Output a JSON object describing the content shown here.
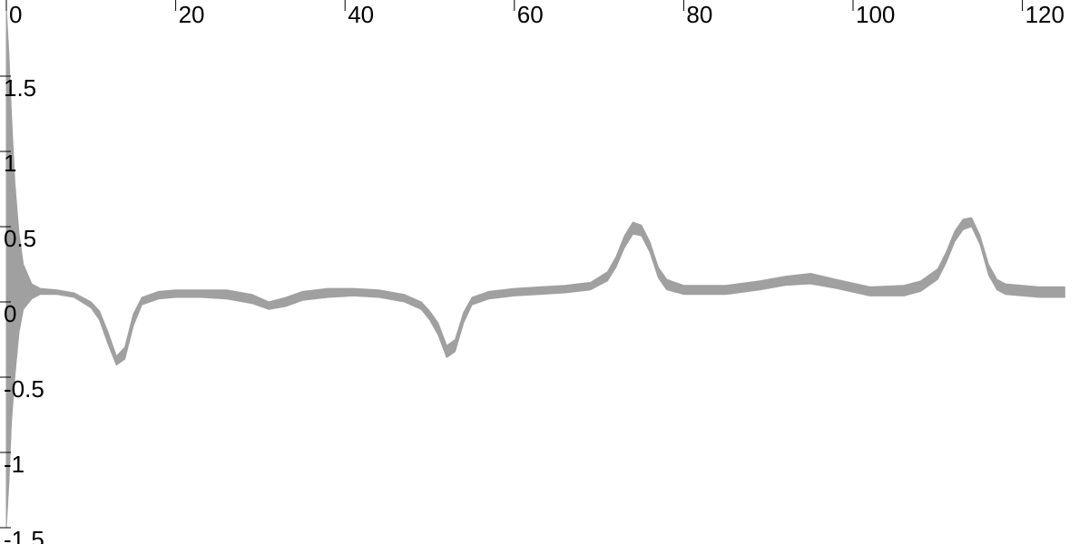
{
  "chart_data": {
    "type": "area",
    "title": "",
    "xlabel": "",
    "ylabel": "",
    "xlim": [
      0,
      125
    ],
    "ylim": [
      -1.5,
      2.0
    ],
    "grid": false,
    "legend": "none",
    "x_ticks": [
      0,
      20,
      40,
      60,
      80,
      100,
      120
    ],
    "x_tick_labels": [
      "0",
      "20",
      "40",
      "60",
      "80",
      "100",
      "120"
    ],
    "y_ticks": [
      1.5,
      1,
      0.5,
      0,
      -0.5,
      -1,
      -1.5
    ],
    "y_tick_labels": [
      "1.5",
      "1",
      "0.5",
      "0",
      "-0.5",
      "-1",
      "-1.5"
    ],
    "series": [
      {
        "color": "#a0a0a0",
        "x": [
          0,
          0.3,
          0.6,
          1,
          1.5,
          2,
          3,
          4,
          6,
          8,
          10,
          11,
          12,
          13,
          14,
          15,
          16,
          18,
          20,
          23,
          26,
          29,
          31,
          33,
          35,
          38,
          41,
          44,
          47,
          49,
          50,
          51,
          52,
          53,
          54,
          55,
          57,
          60,
          63,
          66,
          69,
          71,
          72,
          73,
          74,
          75,
          76,
          77,
          78,
          80,
          85,
          89,
          92,
          95,
          98,
          102,
          106,
          108,
          110,
          111,
          112,
          113,
          114,
          115,
          116,
          117,
          118,
          120,
          122,
          125
        ],
        "upper": [
          1.95,
          1.65,
          1.25,
          0.8,
          0.45,
          0.25,
          0.12,
          0.09,
          0.08,
          0.06,
          0.0,
          -0.06,
          -0.2,
          -0.36,
          -0.3,
          -0.08,
          0.03,
          0.07,
          0.08,
          0.08,
          0.08,
          0.05,
          0.0,
          0.03,
          0.07,
          0.09,
          0.09,
          0.08,
          0.05,
          0.0,
          -0.06,
          -0.14,
          -0.29,
          -0.25,
          -0.07,
          0.03,
          0.07,
          0.09,
          0.1,
          0.11,
          0.13,
          0.2,
          0.3,
          0.44,
          0.53,
          0.51,
          0.4,
          0.23,
          0.15,
          0.11,
          0.11,
          0.14,
          0.17,
          0.19,
          0.15,
          0.1,
          0.11,
          0.14,
          0.22,
          0.33,
          0.47,
          0.55,
          0.56,
          0.44,
          0.25,
          0.15,
          0.12,
          0.11,
          0.1,
          0.1
        ],
        "lower": [
          -1.5,
          -1.2,
          -0.8,
          -0.5,
          -0.2,
          -0.05,
          0.02,
          0.05,
          0.05,
          0.03,
          -0.04,
          -0.12,
          -0.28,
          -0.42,
          -0.38,
          -0.16,
          -0.02,
          0.02,
          0.03,
          0.03,
          0.02,
          -0.01,
          -0.05,
          -0.03,
          0.01,
          0.03,
          0.04,
          0.03,
          0.0,
          -0.05,
          -0.12,
          -0.22,
          -0.37,
          -0.33,
          -0.14,
          -0.02,
          0.02,
          0.04,
          0.05,
          0.06,
          0.08,
          0.14,
          0.23,
          0.36,
          0.45,
          0.44,
          0.33,
          0.16,
          0.08,
          0.05,
          0.05,
          0.08,
          0.11,
          0.12,
          0.09,
          0.04,
          0.04,
          0.07,
          0.15,
          0.26,
          0.4,
          0.48,
          0.5,
          0.38,
          0.18,
          0.08,
          0.05,
          0.04,
          0.03,
          0.03
        ]
      }
    ]
  }
}
